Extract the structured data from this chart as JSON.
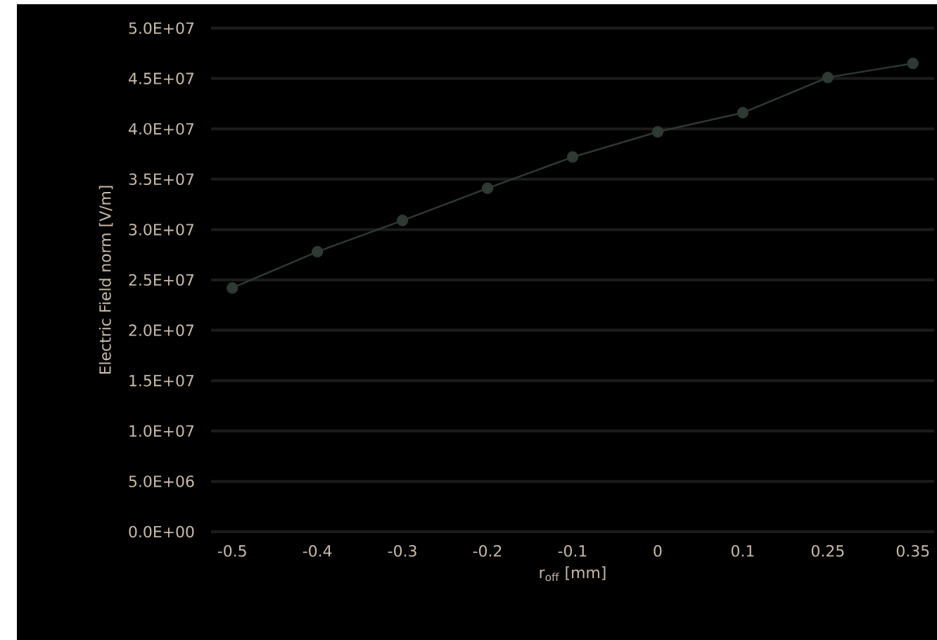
{
  "chart_data": {
    "type": "line",
    "xlabel": "r$_{off}$ [mm]",
    "ylabel": "Electric Field norm [V/m]",
    "categories": [
      "-0.5",
      "-0.4",
      "-0.3",
      "-0.2",
      "-0.1",
      "0",
      "0.1",
      "0.25",
      "0.35"
    ],
    "series": [
      {
        "color": "#2e3a33",
        "values": [
          24200000,
          27800000,
          30900000,
          34100000,
          37200000,
          39700000,
          41600000,
          45100000,
          46500000
        ]
      }
    ],
    "ylim": [
      0,
      50000000
    ],
    "yticks": [
      {
        "value": 0,
        "label": "0.0E+00"
      },
      {
        "value": 5000000,
        "label": "5.0E+06"
      },
      {
        "value": 10000000,
        "label": "1.0E+07"
      },
      {
        "value": 15000000,
        "label": "1.5E+07"
      },
      {
        "value": 20000000,
        "label": "2.0E+07"
      },
      {
        "value": 25000000,
        "label": "2.5E+07"
      },
      {
        "value": 30000000,
        "label": "3.0E+07"
      },
      {
        "value": 35000000,
        "label": "3.5E+07"
      },
      {
        "value": 40000000,
        "label": "4.0E+07"
      },
      {
        "value": 45000000,
        "label": "4.5E+07"
      },
      {
        "value": 50000000,
        "label": "5.0E+07"
      }
    ],
    "grid": "y",
    "marker": "circle",
    "line_style": "solid"
  }
}
